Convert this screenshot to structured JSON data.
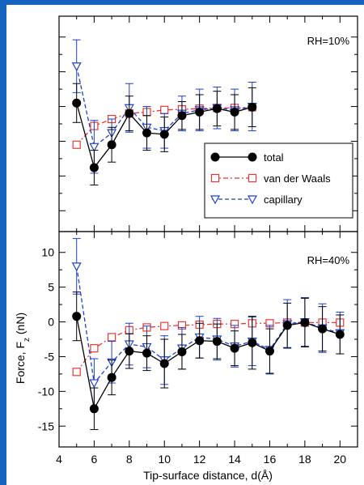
{
  "figure": {
    "ylabel": "Force, F",
    "ylabel_sub": "z",
    "ylabel_unit": " (nN)",
    "xlabel": "Tip-surface distance, d(Å)",
    "frame_color": "#1565c0",
    "x_ticks": [
      "4",
      "6",
      "8",
      "10",
      "12",
      "14",
      "16",
      "18",
      "20"
    ],
    "legend": [
      "total",
      "van der Waals",
      "capillary"
    ]
  },
  "chart_data": [
    {
      "type": "line",
      "panel": "top",
      "annotation": "RH=10%",
      "xlim": [
        4,
        21
      ],
      "ylim": [
        -18,
        13
      ],
      "y_tick_labels_shown": false,
      "legend_placement": "bottom-right",
      "series": [
        {
          "name": "total",
          "color": "#000000",
          "marker": "circle",
          "line": "solid",
          "x": [
            5,
            6,
            7,
            8,
            9,
            10,
            11,
            12,
            13,
            14,
            15
          ],
          "y": [
            0.5,
            -8.8,
            -5.5,
            -1.0,
            -3.8,
            -4.0,
            -1.3,
            -0.8,
            -0.3,
            -0.8,
            -0.1
          ],
          "err": [
            2.8,
            2.5,
            2.5,
            2.5,
            2.5,
            2.5,
            2.0,
            2.5,
            2.5,
            2.5,
            2.8
          ]
        },
        {
          "name": "van der Waals",
          "color": "#e53935",
          "marker": "square",
          "line": "dashdot",
          "x": [
            5,
            6,
            7,
            8,
            9,
            10,
            11,
            12,
            13,
            14,
            15
          ],
          "y": [
            -5.5,
            -2.8,
            -1.8,
            -1.0,
            -0.8,
            -0.5,
            -0.4,
            -0.3,
            -0.2,
            -0.2,
            -0.1
          ],
          "err": []
        },
        {
          "name": "capillary",
          "color": "#1e40d0",
          "marker": "triangle-down",
          "line": "dashed",
          "x": [
            5,
            6,
            7,
            8,
            9,
            10,
            11,
            12,
            13,
            14,
            15
          ],
          "y": [
            5.8,
            -5.8,
            -3.8,
            -0.2,
            -3.0,
            -3.5,
            -1.0,
            -0.5,
            -0.2,
            -0.5,
            0.0
          ],
          "err": [
            3.8,
            3.8,
            2.0,
            3.5,
            3.0,
            2.5,
            2.5,
            3.0,
            3.0,
            3.0,
            3.5
          ]
        }
      ]
    },
    {
      "type": "line",
      "panel": "bottom",
      "annotation": "RH=40%",
      "xlim": [
        4,
        21
      ],
      "ylim": [
        -18,
        13
      ],
      "y_ticks": [
        10,
        5,
        0,
        -5,
        -10,
        -15
      ],
      "series": [
        {
          "name": "total",
          "color": "#000000",
          "marker": "circle",
          "line": "solid",
          "x": [
            5,
            6,
            7,
            8,
            9,
            10,
            11,
            12,
            13,
            14,
            15,
            16,
            17,
            18,
            19,
            20
          ],
          "y": [
            0.8,
            -12.5,
            -8.0,
            -4.2,
            -4.5,
            -6.0,
            -4.3,
            -2.7,
            -2.8,
            -3.8,
            -3.0,
            -4.2,
            -0.5,
            -0.1,
            -1.0,
            -1.8
          ],
          "err": [
            3.5,
            3.0,
            2.5,
            2.5,
            2.5,
            3.5,
            2.5,
            2.5,
            2.5,
            2.5,
            3.8,
            3.2,
            3.2,
            3.5,
            3.2,
            2.8
          ]
        },
        {
          "name": "van der Waals",
          "color": "#e53935",
          "marker": "square",
          "line": "dashdot",
          "x": [
            5,
            6,
            7,
            8,
            9,
            10,
            11,
            12,
            13,
            14,
            15,
            16,
            17,
            18,
            19,
            20
          ],
          "y": [
            -7.2,
            -3.8,
            -2.2,
            -1.2,
            -0.8,
            -0.6,
            -0.5,
            -0.4,
            -0.3,
            -0.3,
            -0.2,
            -0.2,
            -0.1,
            -0.1,
            -0.1,
            -0.1
          ],
          "err": []
        },
        {
          "name": "capillary",
          "color": "#1e40d0",
          "marker": "triangle-down",
          "line": "dashed",
          "x": [
            5,
            6,
            7,
            8,
            9,
            10,
            11,
            12,
            13,
            14,
            15,
            16,
            17,
            18,
            19,
            20
          ],
          "y": [
            8.0,
            -8.8,
            -5.8,
            -3.2,
            -3.6,
            -5.5,
            -3.8,
            -2.2,
            -2.5,
            -3.5,
            -2.8,
            -4.0,
            -0.3,
            0.0,
            -0.9,
            -1.6
          ],
          "err": [
            4.0,
            3.5,
            3.0,
            3.0,
            3.0,
            3.5,
            3.0,
            3.0,
            3.0,
            3.0,
            3.5,
            3.5,
            3.5,
            3.5,
            3.5,
            3.0
          ]
        }
      ]
    }
  ]
}
